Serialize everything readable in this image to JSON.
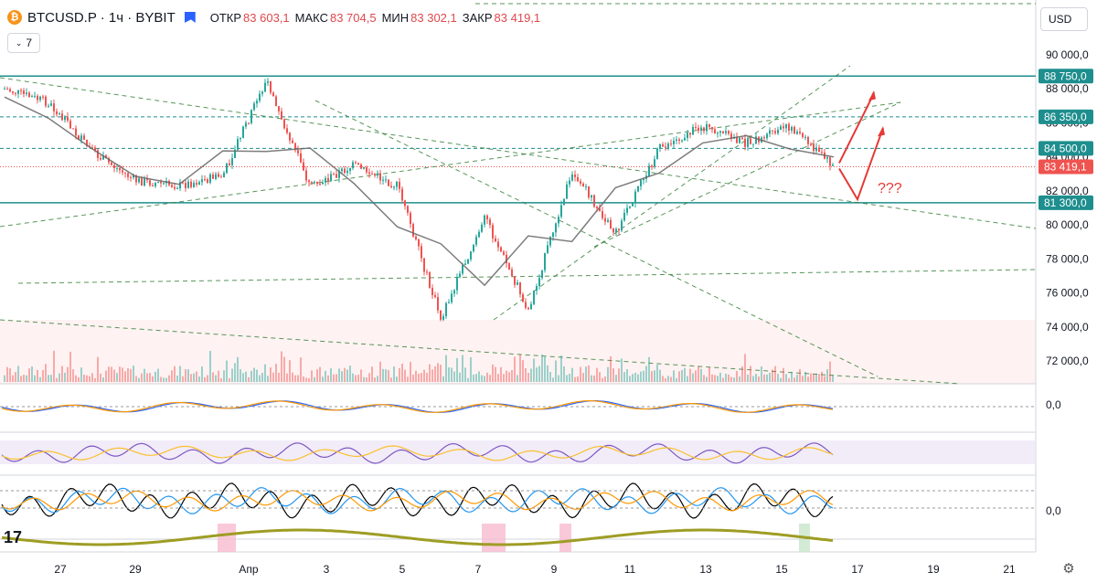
{
  "header": {
    "symbol": "BTCUSD.P · 1ч · BYBIT",
    "open_label": "ОТКР",
    "open_value": "83 603,1",
    "high_label": "МАКС",
    "high_value": "83 704,5",
    "low_label": "МИН",
    "low_value": "83 302,1",
    "close_label": "ЗАКР",
    "close_value": "83 419,1"
  },
  "indicators_button": {
    "count": "7",
    "icon": "chevron-down-icon"
  },
  "currency_button": {
    "label": "USD"
  },
  "settings_icon": "gear-icon",
  "annotation_text": "???",
  "colors": {
    "up": "#26a69a",
    "down": "#ef5350",
    "level_line": "#1e8e8e",
    "trend_dash": "#2e7d32",
    "arrow": "#e53935",
    "ma": "#666666"
  },
  "chart_data": {
    "type": "candlestick",
    "timeframe": "1h",
    "price_axis": {
      "ticks": [
        "90 000,0",
        "88 000,0",
        "86 000,0",
        "84 000,0",
        "82 000,0",
        "80 000,0",
        "78 000,0",
        "76 000,0",
        "74 000,0",
        "72 000,0"
      ],
      "range": [
        70800,
        91200
      ]
    },
    "price_labels": [
      {
        "text": "88 750,0",
        "value": 88750
      },
      {
        "text": "86 350,0",
        "value": 86350
      },
      {
        "text": "84 500,0",
        "value": 84500
      },
      {
        "text": "83 419,1",
        "value": 83419.1,
        "kind": "last"
      },
      {
        "text": "81 300,0",
        "value": 81300
      }
    ],
    "time_axis": {
      "ticks": [
        "27",
        "29",
        "Апр",
        "3",
        "5",
        "7",
        "9",
        "11",
        "13",
        "15",
        "17",
        "19",
        "21"
      ]
    },
    "key_prices": [
      {
        "date": "26",
        "price": 88000
      },
      {
        "date": "27",
        "price": 87200
      },
      {
        "date": "28",
        "price": 84300
      },
      {
        "date": "29",
        "price": 82600
      },
      {
        "date": "31",
        "price": 82300
      },
      {
        "date": "Апр",
        "price": 82900
      },
      {
        "date": "2",
        "price": 88500
      },
      {
        "date": "3",
        "price": 82200
      },
      {
        "date": "5",
        "price": 83500
      },
      {
        "date": "6",
        "price": 82300
      },
      {
        "date": "7",
        "price": 74500
      },
      {
        "date": "8",
        "price": 80500
      },
      {
        "date": "9",
        "price": 75000
      },
      {
        "date": "10",
        "price": 83200
      },
      {
        "date": "11",
        "price": 79500
      },
      {
        "date": "12",
        "price": 84500
      },
      {
        "date": "13",
        "price": 85800
      },
      {
        "date": "14",
        "price": 84800
      },
      {
        "date": "15",
        "price": 85800
      },
      {
        "date": "16",
        "price": 83419.1
      }
    ],
    "oscillator_axis": [
      {
        "text": "0,0"
      },
      {
        "text": "0,0"
      }
    ]
  }
}
